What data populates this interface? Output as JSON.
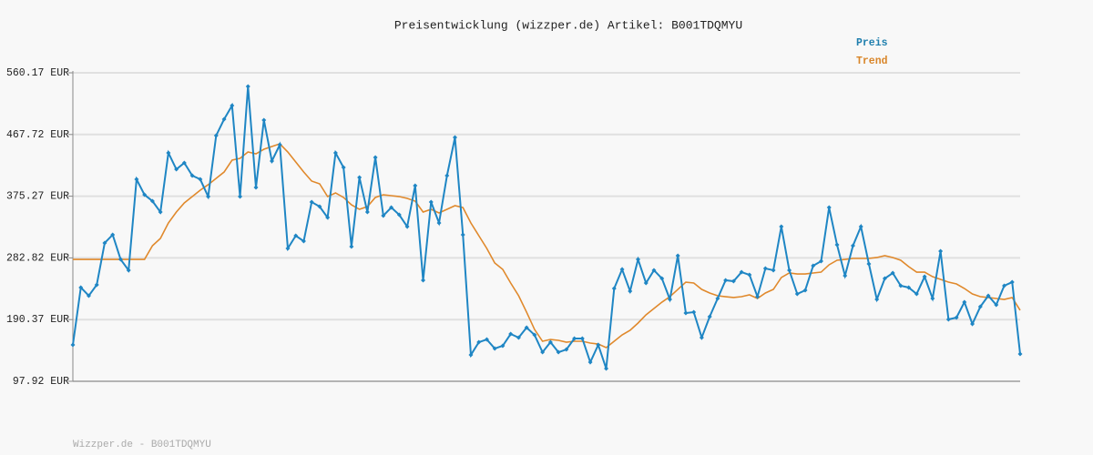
{
  "chart_data": {
    "type": "line",
    "title": "Preisentwicklung (wizzper.de) Artikel: B001TDQMYU",
    "footer": "Wizzper.de - B001TDQMYU",
    "categories": [
      null,
      null,
      null,
      null,
      null,
      null,
      null,
      null,
      null,
      null,
      null,
      null,
      null,
      null,
      null,
      null,
      null,
      null,
      null,
      null,
      null,
      null,
      null,
      null,
      null,
      null,
      null,
      null,
      null,
      null,
      null,
      null,
      null,
      null,
      null,
      null,
      null,
      null,
      null,
      null,
      null,
      null,
      null,
      null,
      null,
      null,
      null,
      null,
      null,
      null,
      null,
      null,
      null,
      null,
      null,
      null,
      null,
      null,
      null,
      null,
      null,
      null,
      null,
      null,
      null,
      null,
      null,
      null,
      null,
      null,
      null,
      null,
      null,
      null,
      null,
      null,
      null,
      null,
      null,
      null,
      null,
      null,
      null,
      null,
      null,
      null,
      null,
      null,
      null,
      null,
      null,
      null,
      null,
      null,
      null,
      null,
      null,
      null,
      null,
      null,
      null,
      null,
      null,
      null,
      null,
      null,
      null,
      null,
      null,
      null,
      null,
      null,
      null,
      null,
      null,
      null,
      null,
      null,
      null,
      null
    ],
    "series": [
      {
        "name": "Preis",
        "color": "#1f86c4",
        "legend_color": "#1f7fae",
        "markers": true,
        "values": [
          152.5,
          238.4,
          226.1,
          242.5,
          305.2,
          317.5,
          280.6,
          264.3,
          400.6,
          377.4,
          367.9,
          351.5,
          440.2,
          415.6,
          425.2,
          406.1,
          400.6,
          374.7,
          466.1,
          490.6,
          511.1,
          374.7,
          539.7,
          388.3,
          489.3,
          427.9,
          452.4,
          297.0,
          316.1,
          307.9,
          366.5,
          359.7,
          343.3,
          440.2,
          418.3,
          299.7,
          403.3,
          351.5,
          433.3,
          346.1,
          358.3,
          347.4,
          329.7,
          391.1,
          249.3,
          366.5,
          335.2,
          406.1,
          463.3,
          317.5,
          137.4,
          156.5,
          160.6,
          147.0,
          151.1,
          168.8,
          163.4,
          178.4,
          167.4,
          141.5,
          156.5,
          141.5,
          145.6,
          162.0,
          162.0,
          126.5,
          152.5,
          117.0,
          237.0,
          265.6,
          232.9,
          280.6,
          245.2,
          264.3,
          252.0,
          220.6,
          286.1,
          200.2,
          201.5,
          163.4,
          194.7,
          222.0,
          249.3,
          247.9,
          261.5,
          257.4,
          224.7,
          267.0,
          264.3,
          329.7,
          264.3,
          228.8,
          234.3,
          271.1,
          277.9,
          358.3,
          302.4,
          256.1,
          301.1,
          329.7,
          273.8,
          220.6,
          252.0,
          260.2,
          241.1,
          238.4,
          228.8,
          254.7,
          222.0,
          292.9,
          190.6,
          193.4,
          216.5,
          183.8,
          209.7,
          226.1,
          212.4,
          241.1,
          246.5,
          138.8
        ]
      },
      {
        "name": "Trend",
        "color": "#e0892c",
        "legend_color": "#d9862a",
        "markers": false,
        "values": [
          280.6,
          280.6,
          280.6,
          280.6,
          280.6,
          280.6,
          280.6,
          280.6,
          280.6,
          280.6,
          301.1,
          312.0,
          335.2,
          351.5,
          365.2,
          374.7,
          384.3,
          392.5,
          402.0,
          411.5,
          429.3,
          432.0,
          441.5,
          438.8,
          445.6,
          449.7,
          453.8,
          441.5,
          426.5,
          411.5,
          397.9,
          393.8,
          374.7,
          380.2,
          373.4,
          362.4,
          355.6,
          359.7,
          373.4,
          377.4,
          376.1,
          374.7,
          372.0,
          367.9,
          351.5,
          355.6,
          350.2,
          355.6,
          361.1,
          358.3,
          335.2,
          316.1,
          297.0,
          275.2,
          265.6,
          245.2,
          226.1,
          201.5,
          175.6,
          157.9,
          160.6,
          159.3,
          156.5,
          157.9,
          157.9,
          155.2,
          153.8,
          148.4,
          157.9,
          167.4,
          174.3,
          185.2,
          197.5,
          207.0,
          216.5,
          224.7,
          235.6,
          246.5,
          245.2,
          235.6,
          230.2,
          226.1,
          224.7,
          223.4,
          224.7,
          227.5,
          222.0,
          230.2,
          235.6,
          253.4,
          260.2,
          258.8,
          258.8,
          260.2,
          261.5,
          272.5,
          279.3,
          280.6,
          282.0,
          282.0,
          282.0,
          283.4,
          286.1,
          283.4,
          279.3,
          269.7,
          261.5,
          261.5,
          254.7,
          250.6,
          246.5,
          243.8,
          237.0,
          228.8,
          224.7,
          223.4,
          222.0,
          220.6,
          223.4,
          204.3
        ]
      }
    ],
    "ylim": [
      97.92,
      560.17
    ],
    "yticks": [
      {
        "value": 97.92,
        "label": "97.92 EUR"
      },
      {
        "value": 190.37,
        "label": "190.37 EUR"
      },
      {
        "value": 282.82,
        "label": "282.82 EUR"
      },
      {
        "value": 375.27,
        "label": "375.27 EUR"
      },
      {
        "value": 467.72,
        "label": "467.72 EUR"
      },
      {
        "value": 560.17,
        "label": "560.17 EUR"
      }
    ],
    "grid": true
  }
}
